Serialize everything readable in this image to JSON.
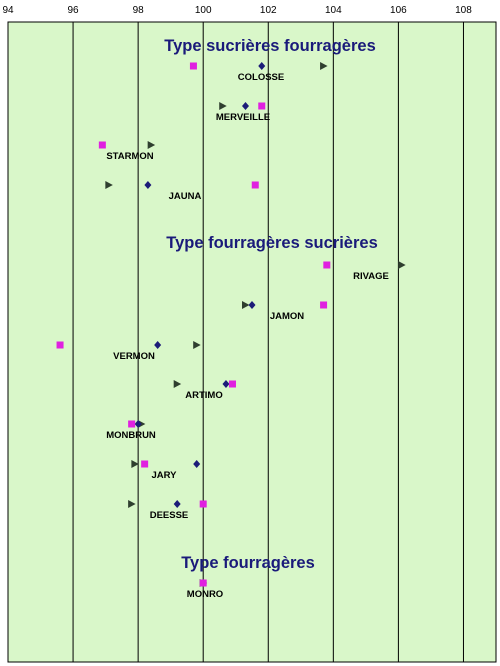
{
  "chart_data": {
    "type": "scatter",
    "title": "",
    "xlabel": "",
    "ylabel": "",
    "xlim": [
      94,
      109
    ],
    "x_ticks": [
      94,
      96,
      98,
      100,
      102,
      104,
      106,
      108
    ],
    "x_tick_labels": [
      "94",
      "96",
      "98",
      "100",
      "102",
      "104",
      "106",
      "108"
    ],
    "grid": true,
    "background_color": "#d9f7c9",
    "marker_colors": {
      "square": "#e020e0",
      "diamond": "#1c1c78",
      "triangle": "#2f3f2f"
    },
    "groups": [
      {
        "title": "Type sucrières fourragères",
        "varieties": [
          {
            "name": "COLOSSE",
            "square": 99.7,
            "diamond": 101.8,
            "triangle": 103.7
          },
          {
            "name": "MERVEILLE",
            "square": 101.8,
            "diamond": 101.3,
            "triangle": 100.6
          },
          {
            "name": "STARMON",
            "square": 96.9,
            "diamond": null,
            "triangle": 98.4
          },
          {
            "name": "JAUNA",
            "square": 101.6,
            "diamond": 98.3,
            "triangle": 97.1
          }
        ]
      },
      {
        "title": "Type fourragères sucrières",
        "varieties": [
          {
            "name": "RIVAGE",
            "square": 103.8,
            "diamond": null,
            "triangle": 106.1
          },
          {
            "name": "JAMON",
            "square": 103.7,
            "diamond": 101.5,
            "triangle": 101.3
          },
          {
            "name": "VERMON",
            "square": 95.6,
            "diamond": 98.6,
            "triangle": 99.8
          },
          {
            "name": "ARTIMO",
            "square": 100.9,
            "diamond": 100.7,
            "triangle": 99.2
          },
          {
            "name": "MONBRUN",
            "square": 97.8,
            "diamond": 98.0,
            "triangle": 98.1
          },
          {
            "name": "JARY",
            "square": 98.2,
            "diamond": 99.8,
            "triangle": 97.9
          },
          {
            "name": "DEESSE",
            "square": 100.0,
            "diamond": 99.2,
            "triangle": 97.8
          }
        ]
      },
      {
        "title": "Type fourragères",
        "varieties": [
          {
            "name": "MONRO",
            "square": 100.0,
            "diamond": 100.0,
            "triangle": 100.0
          }
        ]
      }
    ]
  }
}
